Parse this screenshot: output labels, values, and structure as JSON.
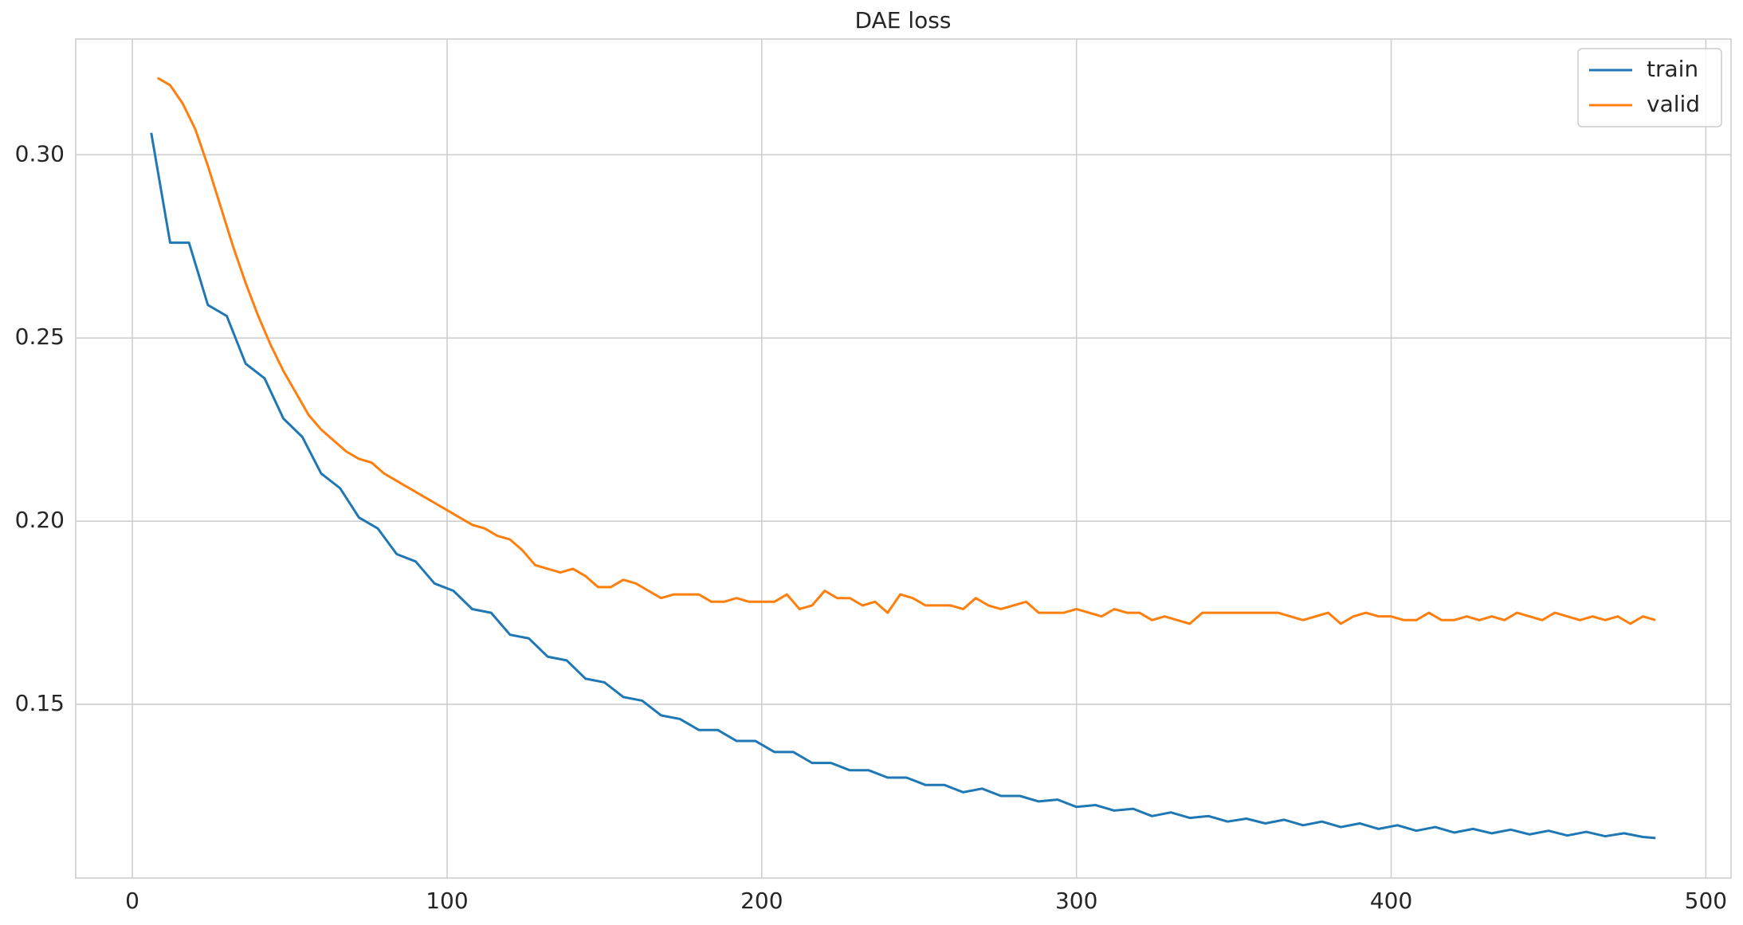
{
  "chart_data": {
    "type": "line",
    "title": "DAE loss",
    "grid": true,
    "legend": "upper right",
    "xlim": [
      -18,
      508
    ],
    "ylim": [
      0.1026,
      0.3316
    ],
    "xticks": [
      0,
      100,
      200,
      300,
      400,
      500
    ],
    "yticks": [
      0.15,
      {
        "value": 0.2,
        "label": "0.20"
      },
      0.25,
      {
        "value": 0.3,
        "label": "0.30"
      }
    ],
    "series": [
      {
        "name": "train",
        "color": "#1f77b4",
        "x": [
          6,
          12,
          18,
          24,
          30,
          36,
          42,
          48,
          54,
          60,
          66,
          72,
          78,
          84,
          90,
          96,
          102,
          108,
          114,
          120,
          126,
          132,
          138,
          144,
          150,
          156,
          162,
          168,
          174,
          180,
          186,
          192,
          198,
          204,
          210,
          216,
          222,
          228,
          234,
          240,
          246,
          252,
          258,
          264,
          270,
          276,
          282,
          288,
          294,
          300,
          306,
          312,
          318,
          324,
          330,
          336,
          342,
          348,
          354,
          360,
          366,
          372,
          378,
          384,
          390,
          396,
          402,
          408,
          414,
          420,
          426,
          432,
          438,
          444,
          450,
          456,
          462,
          468,
          474,
          480,
          484
        ],
        "values": [
          0.306,
          0.276,
          0.276,
          0.259,
          0.256,
          0.243,
          0.239,
          0.228,
          0.223,
          0.213,
          0.209,
          0.201,
          0.198,
          0.191,
          0.189,
          0.183,
          0.181,
          0.176,
          0.175,
          0.169,
          0.168,
          0.163,
          0.162,
          0.157,
          0.156,
          0.152,
          0.151,
          0.147,
          0.146,
          0.143,
          0.143,
          0.14,
          0.14,
          0.137,
          0.137,
          0.134,
          0.134,
          0.132,
          0.132,
          0.13,
          0.13,
          0.128,
          0.128,
          0.126,
          0.127,
          0.125,
          0.125,
          0.1235,
          0.124,
          0.122,
          0.1225,
          0.121,
          0.1215,
          0.1195,
          0.1205,
          0.119,
          0.1195,
          0.118,
          0.1188,
          0.1175,
          0.1185,
          0.117,
          0.118,
          0.1165,
          0.1175,
          0.116,
          0.117,
          0.1155,
          0.1165,
          0.115,
          0.116,
          0.1148,
          0.1158,
          0.1145,
          0.1155,
          0.1142,
          0.1152,
          0.114,
          0.1148,
          0.1138,
          0.1135
        ]
      },
      {
        "name": "valid",
        "color": "#ff7f0e",
        "x": [
          8,
          12,
          16,
          20,
          24,
          28,
          32,
          36,
          40,
          44,
          48,
          52,
          56,
          60,
          64,
          68,
          72,
          76,
          80,
          84,
          88,
          92,
          96,
          100,
          104,
          108,
          112,
          116,
          120,
          124,
          128,
          132,
          136,
          140,
          144,
          148,
          152,
          156,
          160,
          164,
          168,
          172,
          176,
          180,
          184,
          188,
          192,
          196,
          200,
          204,
          208,
          212,
          216,
          220,
          224,
          228,
          232,
          236,
          240,
          244,
          248,
          252,
          256,
          260,
          264,
          268,
          272,
          276,
          280,
          284,
          288,
          292,
          296,
          300,
          304,
          308,
          312,
          316,
          320,
          324,
          328,
          332,
          336,
          340,
          344,
          348,
          352,
          356,
          360,
          364,
          368,
          372,
          376,
          380,
          384,
          388,
          392,
          396,
          400,
          404,
          408,
          412,
          416,
          420,
          424,
          428,
          432,
          436,
          440,
          444,
          448,
          452,
          456,
          460,
          464,
          468,
          472,
          476,
          480,
          484
        ],
        "values": [
          0.321,
          0.319,
          0.314,
          0.307,
          0.297,
          0.286,
          0.275,
          0.265,
          0.256,
          0.248,
          0.241,
          0.235,
          0.229,
          0.225,
          0.222,
          0.219,
          0.217,
          0.216,
          0.213,
          0.211,
          0.209,
          0.207,
          0.205,
          0.203,
          0.201,
          0.199,
          0.198,
          0.196,
          0.195,
          0.192,
          0.188,
          0.187,
          0.186,
          0.187,
          0.185,
          0.182,
          0.182,
          0.184,
          0.183,
          0.181,
          0.179,
          0.18,
          0.18,
          0.18,
          0.178,
          0.178,
          0.179,
          0.178,
          0.178,
          0.178,
          0.18,
          0.176,
          0.177,
          0.181,
          0.179,
          0.179,
          0.177,
          0.178,
          0.175,
          0.18,
          0.179,
          0.177,
          0.177,
          0.177,
          0.176,
          0.179,
          0.177,
          0.176,
          0.177,
          0.178,
          0.175,
          0.175,
          0.175,
          0.176,
          0.175,
          0.174,
          0.176,
          0.175,
          0.175,
          0.173,
          0.174,
          0.173,
          0.172,
          0.175,
          0.175,
          0.175,
          0.175,
          0.175,
          0.175,
          0.175,
          0.174,
          0.173,
          0.174,
          0.175,
          0.172,
          0.174,
          0.175,
          0.174,
          0.174,
          0.173,
          0.173,
          0.175,
          0.173,
          0.173,
          0.174,
          0.173,
          0.174,
          0.173,
          0.175,
          0.174,
          0.173,
          0.175,
          0.174,
          0.173,
          0.174,
          0.173,
          0.174,
          0.172,
          0.174,
          0.173
        ]
      }
    ]
  }
}
